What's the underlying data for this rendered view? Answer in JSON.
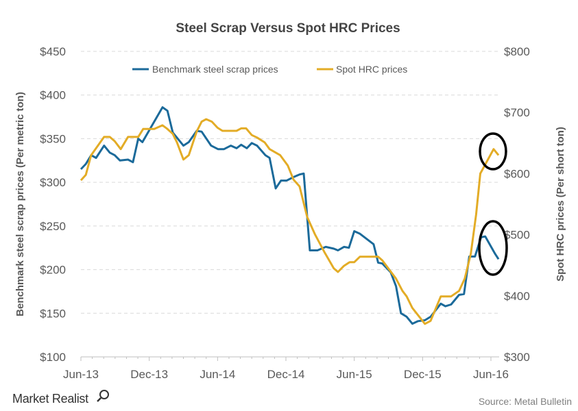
{
  "chart_data": {
    "type": "line",
    "title": "Steel Scrap Versus Spot HRC Prices",
    "ylabel": "Benchmark steel scrap prices (Per metric ton)",
    "ylabel_right": "Spot HRC prices (Per short ton)",
    "xlabel": "",
    "x_ticks": [
      "Jun-13",
      "Dec-13",
      "Jun-14",
      "Dec-14",
      "Jun-15",
      "Dec-15",
      "Jun-16"
    ],
    "y_ticks": [
      "$100",
      "$150",
      "$200",
      "$250",
      "$300",
      "$350",
      "$400",
      "$450"
    ],
    "y_ticks_right": [
      "$300",
      "$400",
      "$500",
      "$600",
      "$700",
      "$800"
    ],
    "ylim": [
      100,
      450
    ],
    "ylim_right": [
      300,
      800
    ],
    "grid": true,
    "legend_position": "top",
    "series": [
      {
        "name": "Benchmark steel scrap prices",
        "axis": "left",
        "color": "#1b6a9a",
        "points": [
          [
            "2013-06-01",
            315
          ],
          [
            "2013-06-14",
            321
          ],
          [
            "2013-06-28",
            331
          ],
          [
            "2013-07-11",
            328
          ],
          [
            "2013-08-02",
            342
          ],
          [
            "2013-08-17",
            334
          ],
          [
            "2013-08-30",
            331
          ],
          [
            "2013-09-14",
            325
          ],
          [
            "2013-10-05",
            326
          ],
          [
            "2013-10-18",
            323
          ],
          [
            "2013-11-02",
            350
          ],
          [
            "2013-11-13",
            346
          ],
          [
            "2014-01-06",
            386
          ],
          [
            "2014-01-19",
            382
          ],
          [
            "2014-02-03",
            357
          ],
          [
            "2014-03-01",
            342
          ],
          [
            "2014-03-15",
            346
          ],
          [
            "2014-04-06",
            359
          ],
          [
            "2014-04-19",
            358
          ],
          [
            "2014-05-14",
            342
          ],
          [
            "2014-06-02",
            338
          ],
          [
            "2014-06-18",
            338
          ],
          [
            "2014-07-06",
            342
          ],
          [
            "2014-07-21",
            339
          ],
          [
            "2014-08-03",
            343
          ],
          [
            "2014-08-18",
            339
          ],
          [
            "2014-08-31",
            345
          ],
          [
            "2014-09-15",
            342
          ],
          [
            "2014-10-07",
            331
          ],
          [
            "2014-10-18",
            328
          ],
          [
            "2014-11-04",
            293
          ],
          [
            "2014-11-18",
            302
          ],
          [
            "2014-12-03",
            302
          ],
          [
            "2014-12-21",
            306
          ],
          [
            "2015-01-07",
            309
          ],
          [
            "2015-01-18",
            310
          ],
          [
            "2015-02-04",
            222
          ],
          [
            "2015-02-24",
            222
          ],
          [
            "2015-03-16",
            226
          ],
          [
            "2015-04-07",
            224
          ],
          [
            "2015-04-18",
            222
          ],
          [
            "2015-05-04",
            226
          ],
          [
            "2015-05-17",
            225
          ],
          [
            "2015-06-01",
            244
          ],
          [
            "2015-06-16",
            241
          ],
          [
            "2015-07-22",
            229
          ],
          [
            "2015-08-04",
            208
          ],
          [
            "2015-08-15",
            207
          ],
          [
            "2015-09-07",
            197
          ],
          [
            "2015-09-21",
            181
          ],
          [
            "2015-10-04",
            150
          ],
          [
            "2015-10-19",
            146
          ],
          [
            "2015-11-04",
            138
          ],
          [
            "2015-11-19",
            141
          ],
          [
            "2015-12-07",
            142
          ],
          [
            "2015-12-22",
            146
          ],
          [
            "2016-01-19",
            161
          ],
          [
            "2016-02-01",
            158
          ],
          [
            "2016-02-16",
            160
          ],
          [
            "2016-03-07",
            171
          ],
          [
            "2016-03-20",
            172
          ],
          [
            "2016-04-04",
            215
          ],
          [
            "2016-04-19",
            215
          ],
          [
            "2016-05-05",
            237
          ],
          [
            "2016-05-16",
            238
          ],
          [
            "2016-06-12",
            218
          ],
          [
            "2016-06-21",
            212
          ]
        ]
      },
      {
        "name": "Spot HRC prices",
        "axis": "right",
        "color": "#e3ac26",
        "points": [
          [
            "2013-06-01",
            589
          ],
          [
            "2013-06-14",
            598
          ],
          [
            "2013-06-28",
            630
          ],
          [
            "2013-08-02",
            660
          ],
          [
            "2013-08-17",
            660
          ],
          [
            "2013-08-30",
            653
          ],
          [
            "2013-09-16",
            640
          ],
          [
            "2013-10-05",
            660
          ],
          [
            "2013-11-02",
            660
          ],
          [
            "2013-11-15",
            673
          ],
          [
            "2013-12-14",
            673
          ],
          [
            "2014-01-06",
            679
          ],
          [
            "2014-01-17",
            674
          ],
          [
            "2014-02-03",
            665
          ],
          [
            "2014-02-14",
            651
          ],
          [
            "2014-03-01",
            623
          ],
          [
            "2014-03-15",
            630
          ],
          [
            "2014-04-06",
            669
          ],
          [
            "2014-04-19",
            685
          ],
          [
            "2014-05-01",
            689
          ],
          [
            "2014-05-16",
            685
          ],
          [
            "2014-05-31",
            675
          ],
          [
            "2014-06-14",
            670
          ],
          [
            "2014-07-21",
            670
          ],
          [
            "2014-08-03",
            674
          ],
          [
            "2014-08-16",
            674
          ],
          [
            "2014-08-31",
            663
          ],
          [
            "2014-09-15",
            659
          ],
          [
            "2014-10-05",
            651
          ],
          [
            "2014-10-18",
            640
          ],
          [
            "2014-11-16",
            630
          ],
          [
            "2014-12-06",
            613
          ],
          [
            "2014-12-21",
            590
          ],
          [
            "2015-01-07",
            579
          ],
          [
            "2015-01-27",
            529
          ],
          [
            "2015-02-18",
            500
          ],
          [
            "2015-03-12",
            472
          ],
          [
            "2015-04-07",
            445
          ],
          [
            "2015-04-18",
            439
          ],
          [
            "2015-05-04",
            449
          ],
          [
            "2015-05-19",
            455
          ],
          [
            "2015-06-01",
            455
          ],
          [
            "2015-06-16",
            464
          ],
          [
            "2015-08-04",
            464
          ],
          [
            "2015-08-15",
            458
          ],
          [
            "2015-09-21",
            428
          ],
          [
            "2015-10-08",
            408
          ],
          [
            "2015-10-19",
            399
          ],
          [
            "2015-11-04",
            380
          ],
          [
            "2015-12-07",
            354
          ],
          [
            "2015-12-22",
            359
          ],
          [
            "2016-01-19",
            399
          ],
          [
            "2016-02-16",
            399
          ],
          [
            "2016-03-07",
            408
          ],
          [
            "2016-03-22",
            428
          ],
          [
            "2016-04-08",
            469
          ],
          [
            "2016-04-22",
            533
          ],
          [
            "2016-05-03",
            600
          ],
          [
            "2016-06-08",
            640
          ],
          [
            "2016-06-21",
            630
          ]
        ]
      }
    ],
    "annotations": [
      "ellipse around latest Spot HRC prices",
      "ellipse around latest Benchmark steel scrap prices"
    ]
  },
  "footer": {
    "logo": "Market Realist",
    "source": "Source: Metal Bulletin"
  }
}
